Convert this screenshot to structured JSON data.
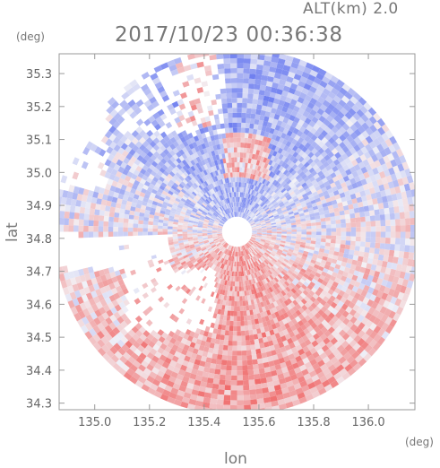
{
  "header": {
    "altitude_label": "ALT(km) 2.0",
    "timestamp": "2017/10/23 00:36:38"
  },
  "chart_data": {
    "type": "heatmap",
    "xlabel": "lon",
    "ylabel": "lat",
    "x_unit": "(deg)",
    "y_unit": "(deg)",
    "xlim": [
      134.87,
      136.17
    ],
    "ylim": [
      34.28,
      35.36
    ],
    "x_ticks": [
      "135.0",
      "135.2",
      "135.4",
      "135.6",
      "135.8",
      "136.0"
    ],
    "y_ticks": [
      "34.3",
      "34.4",
      "34.5",
      "34.6",
      "34.7",
      "34.8",
      "34.9",
      "35.0",
      "35.1",
      "35.2",
      "35.3"
    ],
    "radar_center": {
      "lon": 135.52,
      "lat": 34.82
    },
    "radar_range_deg": 0.67,
    "blank_center_radius_deg": 0.055,
    "grid": false,
    "colors": {
      "negative": "#6f7ff0",
      "positive": "#f06a6a",
      "neutral": "#f3f3f7",
      "frame": "#999999"
    }
  }
}
